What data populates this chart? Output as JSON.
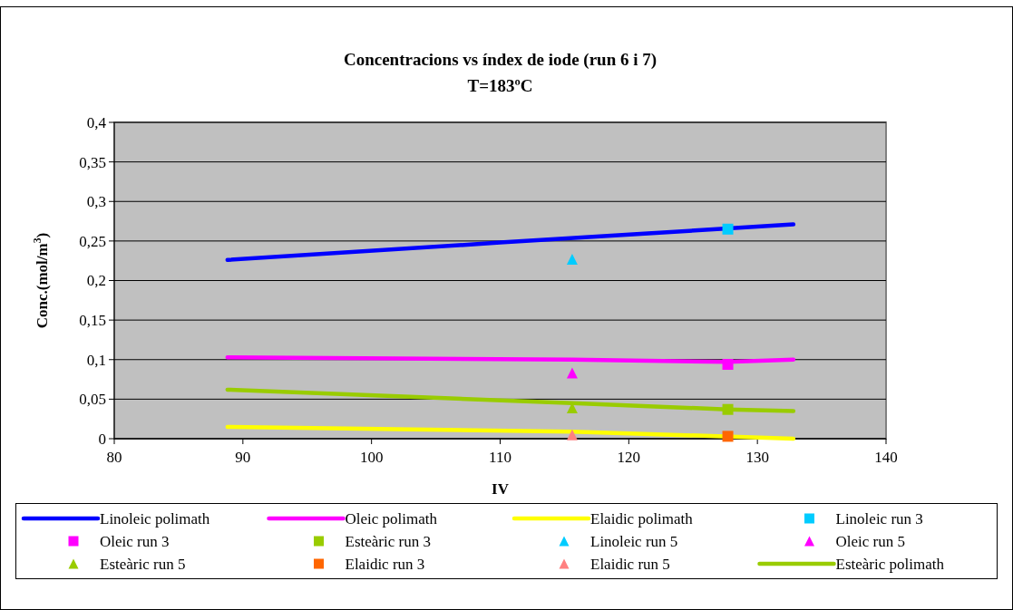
{
  "chart_data": {
    "type": "line",
    "title": "Concentracions vs índex de iode (run 6 i 7)",
    "subtitle": "T=183ºC",
    "xlabel": "IV",
    "ylabel": "Conc.(mol/m$^{3}$)",
    "xlim": [
      80,
      140
    ],
    "xticks": [
      80,
      90,
      100,
      110,
      120,
      130,
      140
    ],
    "ylim": [
      0,
      0.4
    ],
    "yticks": [
      {
        "value": 0,
        "label": "0"
      },
      {
        "value": 0.05,
        "label": "0,05"
      },
      {
        "value": 0.1,
        "label": "0,1"
      },
      {
        "value": 0.15,
        "label": "0,15"
      },
      {
        "value": 0.2,
        "label": "0,2"
      },
      {
        "value": 0.25,
        "label": "0,25"
      },
      {
        "value": 0.3,
        "label": "0,3"
      },
      {
        "value": 0.35,
        "label": "0,35"
      },
      {
        "value": 0.4,
        "label": "0,4"
      }
    ],
    "grid": "y",
    "legend": "bottom",
    "series": [
      {
        "name": "Linoleic polimath",
        "color": "#0000ff",
        "marker": "none",
        "x": [
          88.8,
          110,
          132.8
        ],
        "values": [
          0.226,
          0.248,
          0.271
        ]
      },
      {
        "name": "Oleic polimath",
        "color": "#ff00ff",
        "marker": "none",
        "x": [
          88.8,
          115.6,
          127.7,
          132.8
        ],
        "values": [
          0.103,
          0.1,
          0.097,
          0.1
        ]
      },
      {
        "name": "Elaidic polimath",
        "color": "#ffff00",
        "marker": "none",
        "x": [
          88.8,
          115.6,
          132.8
        ],
        "values": [
          0.015,
          0.009,
          0
        ]
      },
      {
        "name": "Linoleic run 3",
        "type": "scatter",
        "color": "#00ccff",
        "marker": "square",
        "x": [
          127.7
        ],
        "values": [
          0.265
        ]
      },
      {
        "name": "Oleic run 3",
        "type": "scatter",
        "color": "#ff00ff",
        "marker": "square",
        "x": [
          127.7
        ],
        "values": [
          0.094
        ]
      },
      {
        "name": "Esteàric run 3",
        "type": "scatter",
        "color": "#99cc00",
        "marker": "square",
        "x": [
          127.7
        ],
        "values": [
          0.037
        ]
      },
      {
        "name": "Linoleic run 5",
        "type": "scatter",
        "color": "#00ccff",
        "marker": "triangle",
        "x": [
          115.6
        ],
        "values": [
          0.227
        ]
      },
      {
        "name": "Oleic run 5",
        "type": "scatter",
        "color": "#ff00ff",
        "marker": "triangle",
        "x": [
          115.6
        ],
        "values": [
          0.083
        ]
      },
      {
        "name": "Esteàric run 5",
        "type": "scatter",
        "color": "#99cc00",
        "marker": "triangle",
        "x": [
          115.6
        ],
        "values": [
          0.039
        ]
      },
      {
        "name": "Elaidic run 3",
        "type": "scatter",
        "color": "#ff6600",
        "marker": "square",
        "x": [
          127.7
        ],
        "values": [
          0.003
        ]
      },
      {
        "name": "Elaidic run 5",
        "type": "scatter",
        "color": "#ff8080",
        "marker": "triangle",
        "x": [
          115.6
        ],
        "values": [
          0.005
        ]
      },
      {
        "name": "Esteàric polimath",
        "color": "#99cc00",
        "marker": "none",
        "x": [
          88.8,
          115.6,
          127.7,
          132.8
        ],
        "values": [
          0.062,
          0.045,
          0.037,
          0.035
        ]
      }
    ]
  }
}
